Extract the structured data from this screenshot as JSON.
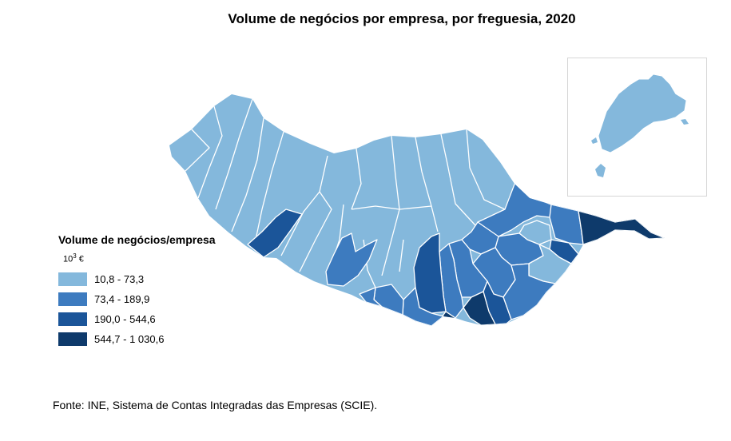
{
  "title": "Volume de negócios por empresa, por freguesia, 2020",
  "legend": {
    "title": "Volume de negócios/empresa",
    "unit_base": "10",
    "unit_exp": "3",
    "unit_symbol": " €",
    "classes": [
      {
        "label": "10,8 - 73,3",
        "color": "#84b8dc"
      },
      {
        "label": "73,4 - 189,9",
        "color": "#3d7bbf"
      },
      {
        "label": "190,0 - 544,6",
        "color": "#1b5599"
      },
      {
        "label": "544,7 - 1 030,6",
        "color": "#0e3a6b"
      }
    ]
  },
  "source": "Fonte: INE, Sistema de Contas Integradas das Empresas (SCIE).",
  "border_color": "#ffffff"
}
